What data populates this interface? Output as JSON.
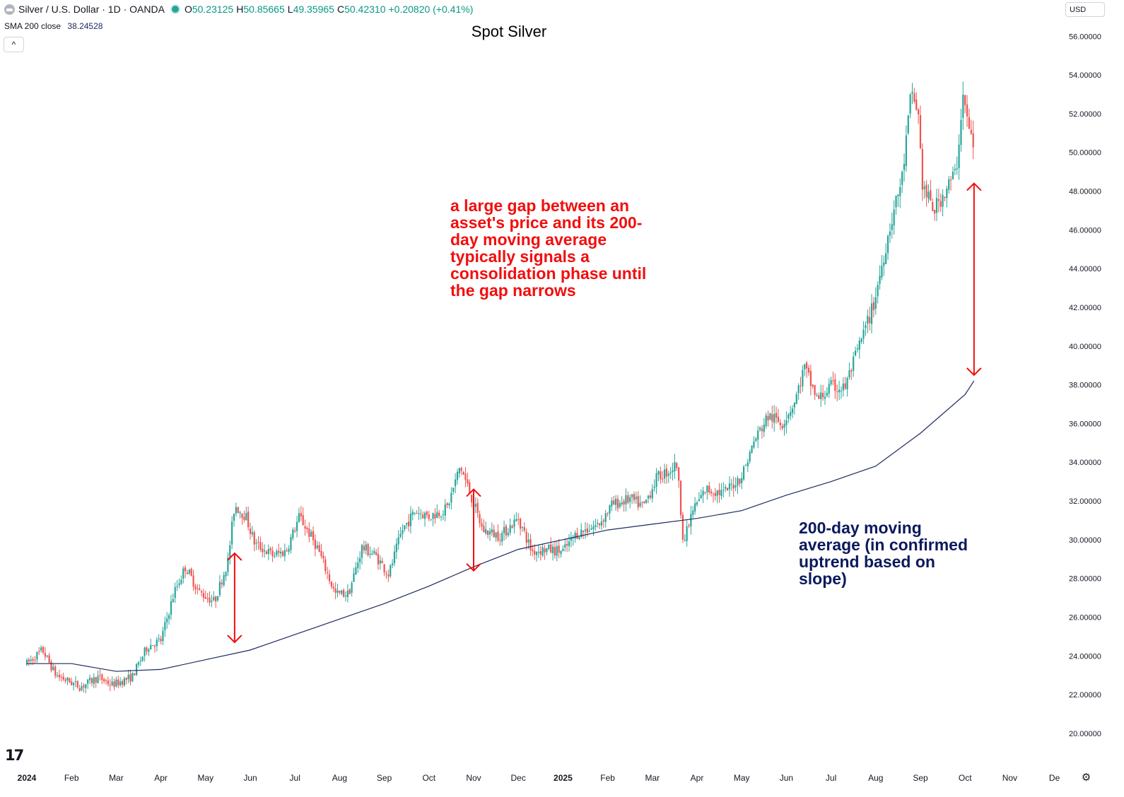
{
  "header": {
    "symbol_title": "Silver / U.S. Dollar · 1D · OANDA",
    "open_key": "O",
    "open": "50.23125",
    "high_key": "H",
    "high": "50.85665",
    "low_key": "L",
    "low": "49.35965",
    "close_key": "C",
    "close": "50.42310",
    "change": "+0.20820 (+0.41%)"
  },
  "indicator": {
    "label": "SMA 200 close",
    "value": "38.24528"
  },
  "controls": {
    "collapse": "^",
    "currency": "USD",
    "settings": "⚙"
  },
  "brand": {
    "logo_text": "17"
  },
  "chart_data": {
    "type": "candlestick",
    "title": "Spot Silver",
    "ylim": [
      19.2,
      56.5
    ],
    "y_ticks": [
      "56.00000",
      "54.00000",
      "52.00000",
      "50.00000",
      "48.00000",
      "46.00000",
      "44.00000",
      "42.00000",
      "40.00000",
      "38.00000",
      "36.00000",
      "34.00000",
      "32.00000",
      "30.00000",
      "28.00000",
      "26.00000",
      "24.00000",
      "22.00000",
      "20.00000"
    ],
    "x_ticks": [
      "2024",
      "Feb",
      "Mar",
      "Apr",
      "May",
      "Jun",
      "Jul",
      "Aug",
      "Sep",
      "Oct",
      "Nov",
      "Dec",
      "2025",
      "Feb",
      "Mar",
      "Apr",
      "May",
      "Jun",
      "Jul",
      "Aug",
      "Sep",
      "Oct",
      "Nov",
      "De"
    ],
    "x_ticks_bold": [
      "2024",
      "2025"
    ],
    "price_path": [
      {
        "month": 0.0,
        "price": 23.6
      },
      {
        "month": 0.35,
        "price": 24.3
      },
      {
        "month": 0.65,
        "price": 23.0
      },
      {
        "month": 1.2,
        "price": 22.4
      },
      {
        "month": 1.6,
        "price": 22.9
      },
      {
        "month": 1.9,
        "price": 22.5
      },
      {
        "month": 2.35,
        "price": 22.9
      },
      {
        "month": 2.7,
        "price": 24.5
      },
      {
        "month": 3.0,
        "price": 24.8
      },
      {
        "month": 3.3,
        "price": 27.3
      },
      {
        "month": 3.55,
        "price": 28.6
      },
      {
        "month": 3.85,
        "price": 27.3
      },
      {
        "month": 4.2,
        "price": 26.8
      },
      {
        "month": 4.5,
        "price": 28.9
      },
      {
        "month": 4.65,
        "price": 31.8
      },
      {
        "month": 4.9,
        "price": 31.2
      },
      {
        "month": 5.1,
        "price": 29.8
      },
      {
        "month": 5.5,
        "price": 29.2
      },
      {
        "month": 5.8,
        "price": 29.4
      },
      {
        "month": 6.1,
        "price": 31.2
      },
      {
        "month": 6.5,
        "price": 29.6
      },
      {
        "month": 6.9,
        "price": 27.2
      },
      {
        "month": 7.2,
        "price": 27.2
      },
      {
        "month": 7.5,
        "price": 29.6
      },
      {
        "month": 7.8,
        "price": 29.2
      },
      {
        "month": 8.1,
        "price": 28.2
      },
      {
        "month": 8.4,
        "price": 30.5
      },
      {
        "month": 8.7,
        "price": 31.5
      },
      {
        "month": 9.0,
        "price": 31.2
      },
      {
        "month": 9.4,
        "price": 31.6
      },
      {
        "month": 9.7,
        "price": 33.8
      },
      {
        "month": 9.95,
        "price": 32.2
      },
      {
        "month": 10.2,
        "price": 30.5
      },
      {
        "month": 10.6,
        "price": 30.2
      },
      {
        "month": 11.0,
        "price": 31.1
      },
      {
        "month": 11.3,
        "price": 29.4
      },
      {
        "month": 11.6,
        "price": 29.5
      },
      {
        "month": 12.0,
        "price": 29.4
      },
      {
        "month": 12.3,
        "price": 30.3
      },
      {
        "month": 12.8,
        "price": 30.8
      },
      {
        "month": 13.1,
        "price": 31.8
      },
      {
        "month": 13.5,
        "price": 32.1
      },
      {
        "month": 13.8,
        "price": 31.7
      },
      {
        "month": 14.1,
        "price": 33.2
      },
      {
        "month": 14.4,
        "price": 33.6
      },
      {
        "month": 14.55,
        "price": 33.9
      },
      {
        "month": 14.7,
        "price": 29.8
      },
      {
        "month": 14.9,
        "price": 31.5
      },
      {
        "month": 15.2,
        "price": 32.6
      },
      {
        "month": 15.6,
        "price": 32.4
      },
      {
        "month": 16.0,
        "price": 33.3
      },
      {
        "month": 16.3,
        "price": 35.2
      },
      {
        "month": 16.6,
        "price": 36.4
      },
      {
        "month": 16.9,
        "price": 36.0
      },
      {
        "month": 17.2,
        "price": 37.2
      },
      {
        "month": 17.4,
        "price": 38.9
      },
      {
        "month": 17.7,
        "price": 37.2
      },
      {
        "month": 18.0,
        "price": 37.9
      },
      {
        "month": 18.3,
        "price": 37.8
      },
      {
        "month": 18.6,
        "price": 39.8
      },
      {
        "month": 18.95,
        "price": 42.1
      },
      {
        "month": 19.3,
        "price": 46.0
      },
      {
        "month": 19.6,
        "price": 48.8
      },
      {
        "month": 19.8,
        "price": 53.2
      },
      {
        "month": 19.95,
        "price": 52.0
      },
      {
        "month": 20.05,
        "price": 48.2
      },
      {
        "month": 20.3,
        "price": 47.0
      },
      {
        "month": 20.6,
        "price": 48.2
      },
      {
        "month": 20.8,
        "price": 49.0
      },
      {
        "month": 20.95,
        "price": 53.0
      },
      {
        "month": 21.1,
        "price": 51.0
      },
      {
        "month": 21.2,
        "price": 50.4
      }
    ],
    "sma_200": [
      {
        "month": 0.0,
        "price": 23.6
      },
      {
        "month": 1.0,
        "price": 23.6
      },
      {
        "month": 2.0,
        "price": 23.2
      },
      {
        "month": 3.0,
        "price": 23.3
      },
      {
        "month": 4.0,
        "price": 23.8
      },
      {
        "month": 5.0,
        "price": 24.3
      },
      {
        "month": 6.0,
        "price": 25.1
      },
      {
        "month": 7.0,
        "price": 25.9
      },
      {
        "month": 8.0,
        "price": 26.7
      },
      {
        "month": 9.0,
        "price": 27.6
      },
      {
        "month": 10.0,
        "price": 28.6
      },
      {
        "month": 11.0,
        "price": 29.5
      },
      {
        "month": 12.0,
        "price": 30.0
      },
      {
        "month": 13.0,
        "price": 30.5
      },
      {
        "month": 14.0,
        "price": 30.8
      },
      {
        "month": 15.0,
        "price": 31.1
      },
      {
        "month": 16.0,
        "price": 31.5
      },
      {
        "month": 17.0,
        "price": 32.3
      },
      {
        "month": 18.0,
        "price": 33.0
      },
      {
        "month": 19.0,
        "price": 33.8
      },
      {
        "month": 20.0,
        "price": 35.5
      },
      {
        "month": 21.0,
        "price": 37.5
      },
      {
        "month": 21.2,
        "price": 38.2
      }
    ],
    "annotation_arrows": [
      {
        "month": 4.65,
        "from": 29.3,
        "to": 24.7
      },
      {
        "month": 10.0,
        "from": 32.6,
        "to": 28.4
      },
      {
        "month": 21.2,
        "from": 48.4,
        "to": 38.5
      }
    ],
    "annotations": {
      "gap_text": "a large gap between an asset's price and its 200-day moving average typically signals a consolidation phase until the gap narrows",
      "sma_text": "200-day moving average (in confirmed uptrend based on slope)"
    },
    "colors": {
      "up": "#26a69a",
      "down": "#ef5350",
      "sma": "#1e2a5e",
      "annotation_red": "#f20e0e",
      "annotation_blue": "#0b1a5c"
    }
  }
}
